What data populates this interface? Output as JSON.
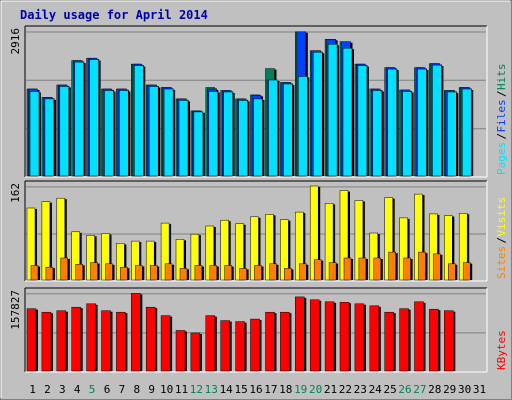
{
  "title": "Daily usage for April 2014",
  "colors": {
    "background": "#c0c0c0",
    "title": "#0000aa",
    "hits": "#00805c",
    "files": "#0040ff",
    "pages": "#00e0ff",
    "visits": "#ffff00",
    "sites": "#ff8000",
    "kbytes": "#ff0000",
    "weekend": "#00805c"
  },
  "chart_data": [
    {
      "type": "bar",
      "panel": "hits-files-pages",
      "ymax_label": "2916",
      "ylim": [
        0,
        2916
      ],
      "legend": [
        {
          "label": "Pages",
          "color": "#00e0ff"
        },
        {
          "label": "Files",
          "color": "#0040ff"
        },
        {
          "label": "Hits",
          "color": "#00805c"
        }
      ],
      "categories": [
        "1",
        "2",
        "3",
        "4",
        "5",
        "6",
        "7",
        "8",
        "9",
        "10",
        "11",
        "12",
        "13",
        "14",
        "15",
        "16",
        "17",
        "18",
        "19",
        "20",
        "21",
        "22",
        "23",
        "24",
        "25",
        "26",
        "27",
        "28",
        "29",
        "30",
        "31"
      ],
      "series": [
        {
          "name": "Hits",
          "values": [
            1750,
            1580,
            1830,
            2320,
            2370,
            1750,
            1750,
            2250,
            1830,
            1780,
            1550,
            1310,
            1780,
            1720,
            1550,
            1630,
            2160,
            1880,
            2900,
            2520,
            2750,
            2700,
            2250,
            1750,
            2180,
            1730,
            2180,
            2260,
            1720,
            1780,
            0
          ]
        },
        {
          "name": "Files",
          "values": [
            1750,
            1580,
            1830,
            2320,
            2370,
            1750,
            1750,
            2250,
            1830,
            1780,
            1550,
            1310,
            1750,
            1720,
            1550,
            1620,
            1930,
            1880,
            2900,
            2520,
            2750,
            2700,
            2250,
            1750,
            2180,
            1730,
            2180,
            2260,
            1720,
            1780,
            0
          ]
        },
        {
          "name": "Pages",
          "values": [
            1700,
            1550,
            1800,
            2290,
            2340,
            1720,
            1720,
            2220,
            1800,
            1750,
            1520,
            1290,
            1700,
            1690,
            1520,
            1550,
            1930,
            1850,
            2000,
            2490,
            2650,
            2570,
            2220,
            1720,
            2150,
            1700,
            2150,
            2230,
            1690,
            1750,
            0
          ]
        }
      ]
    },
    {
      "type": "bar",
      "panel": "visits-sites",
      "ymax_label": "162",
      "ylim": [
        0,
        162
      ],
      "legend": [
        {
          "label": "Sites",
          "color": "#ff8000"
        },
        {
          "label": "Visits",
          "color": "#ffff00"
        }
      ],
      "categories": [
        "1",
        "2",
        "3",
        "4",
        "5",
        "6",
        "7",
        "8",
        "9",
        "10",
        "11",
        "12",
        "13",
        "14",
        "15",
        "16",
        "17",
        "18",
        "19",
        "20",
        "21",
        "22",
        "23",
        "24",
        "25",
        "26",
        "27",
        "28",
        "29",
        "30",
        "31"
      ],
      "series": [
        {
          "name": "Visits",
          "values": [
            124,
            135,
            141,
            83,
            77,
            80,
            63,
            67,
            67,
            98,
            70,
            79,
            93,
            103,
            97,
            109,
            113,
            104,
            117,
            162,
            132,
            154,
            137,
            81,
            142,
            107,
            148,
            114,
            111,
            115,
            0
          ]
        },
        {
          "name": "Sites",
          "values": [
            25,
            22,
            38,
            27,
            30,
            28,
            22,
            25,
            25,
            28,
            20,
            25,
            25,
            25,
            20,
            25,
            28,
            20,
            28,
            35,
            30,
            38,
            38,
            38,
            48,
            38,
            48,
            45,
            28,
            30,
            0
          ]
        }
      ]
    },
    {
      "type": "bar",
      "panel": "kbytes",
      "ymax_label": "157827",
      "ylim": [
        0,
        157827
      ],
      "legend": [
        {
          "label": "KBytes",
          "color": "#ff0000"
        }
      ],
      "categories": [
        "1",
        "2",
        "3",
        "4",
        "5",
        "6",
        "7",
        "8",
        "9",
        "10",
        "11",
        "12",
        "13",
        "14",
        "15",
        "16",
        "17",
        "18",
        "19",
        "20",
        "21",
        "22",
        "23",
        "24",
        "25",
        "26",
        "27",
        "28",
        "29",
        "30",
        "31"
      ],
      "series": [
        {
          "name": "KBytes",
          "values": [
            126000,
            119000,
            122000,
            129000,
            136000,
            122000,
            119000,
            157000,
            129000,
            112000,
            82000,
            77000,
            112000,
            102000,
            100000,
            105000,
            119000,
            119000,
            150000,
            144000,
            140000,
            139000,
            136000,
            132000,
            119000,
            126000,
            140000,
            125000,
            122000,
            0,
            0
          ]
        }
      ]
    }
  ],
  "weekend_days": [
    "5",
    "12",
    "13",
    "19",
    "20",
    "26",
    "27"
  ]
}
